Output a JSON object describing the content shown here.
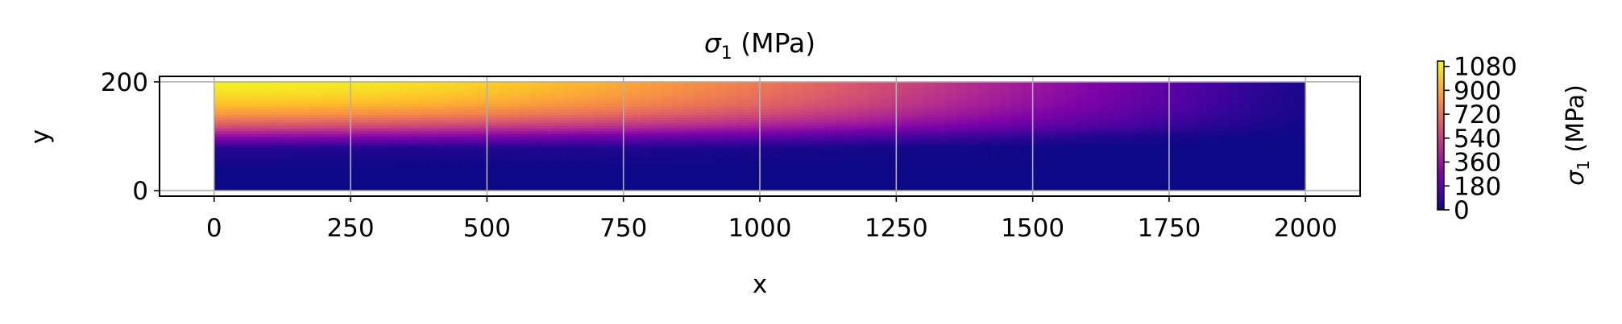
{
  "chart_data": {
    "type": "heatmap",
    "title": "σ1 (MPa)",
    "xlabel": "x",
    "ylabel": "y",
    "xlim": [
      -100,
      2100
    ],
    "ylim": [
      -10,
      210
    ],
    "domain": {
      "x": [
        0,
        2000
      ],
      "y": [
        0,
        200
      ]
    },
    "x_ticks": [
      0,
      250,
      500,
      750,
      1000,
      1250,
      1500,
      1750,
      2000
    ],
    "y_ticks": [
      0,
      200
    ],
    "grid": true,
    "colormap": "plasma",
    "colorbar": {
      "label": "σ1 (MPa)",
      "ticks": [
        0,
        180,
        360,
        540,
        720,
        900,
        1080
      ],
      "range": [
        0,
        1120
      ]
    },
    "field": {
      "x": [
        0,
        100,
        200,
        300,
        400,
        500,
        600,
        700,
        800,
        900,
        1000,
        1100,
        1200,
        1300,
        1400,
        1500,
        1600,
        1700,
        1800,
        1900,
        2000
      ],
      "y": [
        0,
        40,
        80,
        100,
        120,
        140,
        160,
        180,
        200
      ],
      "values": [
        [
          0,
          0,
          0,
          0,
          0,
          0,
          0,
          0,
          0,
          0,
          0,
          0,
          0,
          0,
          0,
          0,
          0,
          0,
          0,
          0,
          0
        ],
        [
          0,
          0,
          0,
          0,
          0,
          0,
          0,
          0,
          0,
          0,
          0,
          0,
          0,
          0,
          0,
          0,
          0,
          0,
          0,
          0,
          0
        ],
        [
          60,
          60,
          55,
          55,
          50,
          50,
          45,
          45,
          40,
          35,
          30,
          25,
          20,
          15,
          10,
          5,
          0,
          0,
          0,
          0,
          0
        ],
        [
          330,
          320,
          310,
          300,
          290,
          275,
          260,
          245,
          230,
          215,
          195,
          175,
          150,
          125,
          100,
          80,
          55,
          35,
          15,
          5,
          0
        ],
        [
          620,
          610,
          600,
          585,
          570,
          550,
          530,
          505,
          480,
          455,
          420,
          385,
          345,
          300,
          255,
          210,
          165,
          120,
          80,
          40,
          10
        ],
        [
          840,
          830,
          820,
          805,
          785,
          760,
          730,
          700,
          660,
          620,
          575,
          525,
          470,
          410,
          350,
          290,
          230,
          170,
          115,
          60,
          20
        ],
        [
          980,
          975,
          965,
          950,
          930,
          900,
          865,
          825,
          780,
          730,
          675,
          615,
          550,
          480,
          410,
          340,
          270,
          200,
          135,
          70,
          25
        ],
        [
          1060,
          1055,
          1045,
          1030,
          1005,
          975,
          935,
          890,
          840,
          785,
          725,
          660,
          590,
          515,
          440,
          365,
          290,
          215,
          145,
          75,
          30
        ],
        [
          1100,
          1095,
          1085,
          1070,
          1045,
          1015,
          975,
          930,
          875,
          815,
          750,
          680,
          605,
          530,
          450,
          375,
          300,
          220,
          150,
          80,
          30
        ]
      ]
    }
  }
}
